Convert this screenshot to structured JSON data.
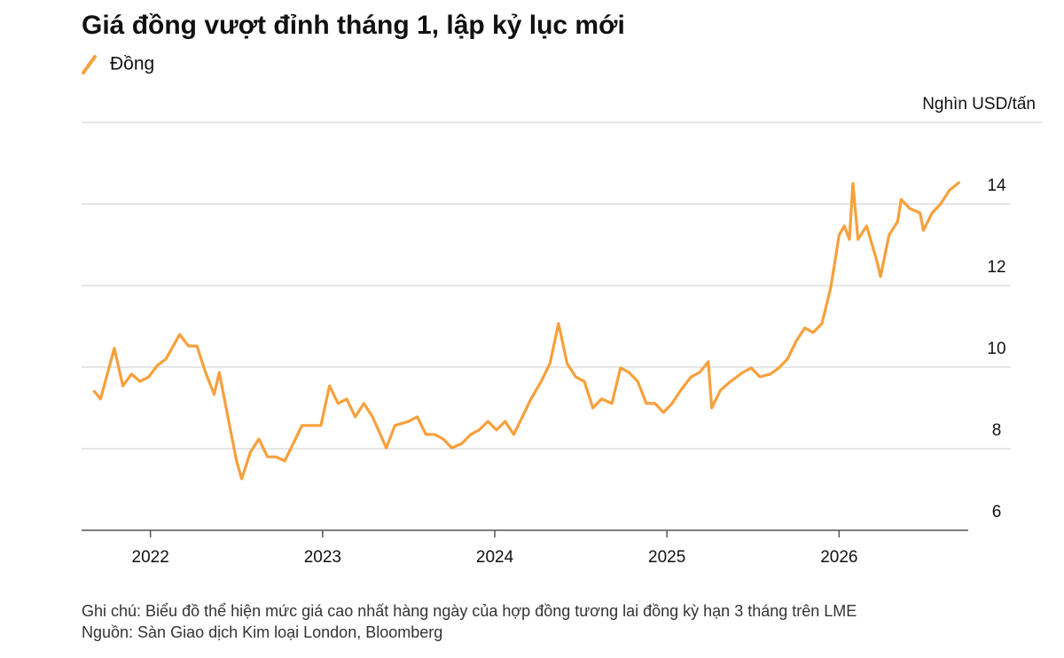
{
  "chart_data": {
    "type": "line",
    "title": "Giá đồng vượt đỉnh tháng 1, lập kỷ lục mới",
    "y_label": "Nghìn USD/tấn",
    "notes": [
      "Ghi chú: Biểu đồ thể hiện mức giá cao nhất hàng ngày của hợp đồng tương lai đồng kỳ hạn 3 tháng trên LME",
      "Nguồn: Sàn Giao dịch Kim loại London, Bloomberg"
    ],
    "xlim": [
      2021.6,
      2026.75
    ],
    "xticks": [
      2022,
      2023,
      2024,
      2025,
      2026
    ],
    "ylim": [
      6,
      16
    ],
    "yticks": [
      6,
      8,
      10,
      12,
      14
    ],
    "grid": true,
    "series": [
      {
        "name": "Đồng",
        "color": "#f7a03c",
        "x": [
          2021.67,
          2021.71,
          2021.79,
          2021.84,
          2021.89,
          2021.94,
          2021.99,
          2022.04,
          2022.09,
          2022.17,
          2022.22,
          2022.27,
          2022.32,
          2022.37,
          2022.4,
          2022.45,
          2022.5,
          2022.53,
          2022.58,
          2022.63,
          2022.68,
          2022.73,
          2022.78,
          2022.83,
          2022.88,
          2022.94,
          2022.99,
          2023.04,
          2023.09,
          2023.14,
          2023.19,
          2023.24,
          2023.29,
          2023.37,
          2023.42,
          2023.5,
          2023.55,
          2023.6,
          2023.65,
          2023.7,
          2023.75,
          2023.81,
          2023.86,
          2023.91,
          2023.96,
          2024.01,
          2024.06,
          2024.11,
          2024.16,
          2024.21,
          2024.27,
          2024.32,
          2024.37,
          2024.42,
          2024.47,
          2024.52,
          2024.57,
          2024.62,
          2024.68,
          2024.73,
          2024.78,
          2024.83,
          2024.88,
          2024.93,
          2024.98,
          2025.03,
          2025.08,
          2025.14,
          2025.19,
          2025.24,
          2025.26,
          2025.31,
          2025.37,
          2025.44,
          2025.49,
          2025.54,
          2025.6,
          2025.65,
          2025.7,
          2025.75,
          2025.8,
          2025.85,
          2025.9,
          2025.95,
          2025.98,
          2026.0,
          2026.03,
          2026.06,
          2026.08,
          2026.11,
          2026.16,
          2026.22,
          2026.24,
          2026.29,
          2026.34,
          2026.36,
          2026.41,
          2026.47,
          2026.49,
          2026.54,
          2026.59,
          2026.64,
          2026.7
        ],
        "values": [
          9.43,
          9.22,
          10.46,
          9.54,
          9.83,
          9.65,
          9.76,
          10.04,
          10.2,
          10.8,
          10.52,
          10.52,
          9.87,
          9.33,
          9.87,
          8.78,
          7.7,
          7.26,
          7.91,
          8.24,
          7.8,
          7.8,
          7.7,
          8.13,
          8.57,
          8.57,
          8.57,
          9.54,
          9.11,
          9.22,
          8.78,
          9.11,
          8.78,
          8.02,
          8.57,
          8.67,
          8.78,
          8.35,
          8.35,
          8.24,
          8.02,
          8.13,
          8.35,
          8.46,
          8.67,
          8.46,
          8.67,
          8.35,
          8.78,
          9.22,
          9.65,
          10.09,
          11.07,
          10.09,
          9.76,
          9.65,
          9.0,
          9.22,
          9.11,
          9.98,
          9.87,
          9.65,
          9.11,
          9.11,
          8.89,
          9.11,
          9.43,
          9.76,
          9.87,
          10.13,
          9.0,
          9.43,
          9.65,
          9.87,
          9.98,
          9.76,
          9.83,
          9.98,
          10.2,
          10.63,
          10.96,
          10.85,
          11.07,
          11.93,
          12.7,
          13.24,
          13.46,
          13.13,
          14.5,
          13.13,
          13.46,
          12.59,
          12.22,
          13.24,
          13.57,
          14.11,
          13.89,
          13.78,
          13.35,
          13.78,
          14.0,
          14.33,
          14.54
        ]
      }
    ]
  }
}
